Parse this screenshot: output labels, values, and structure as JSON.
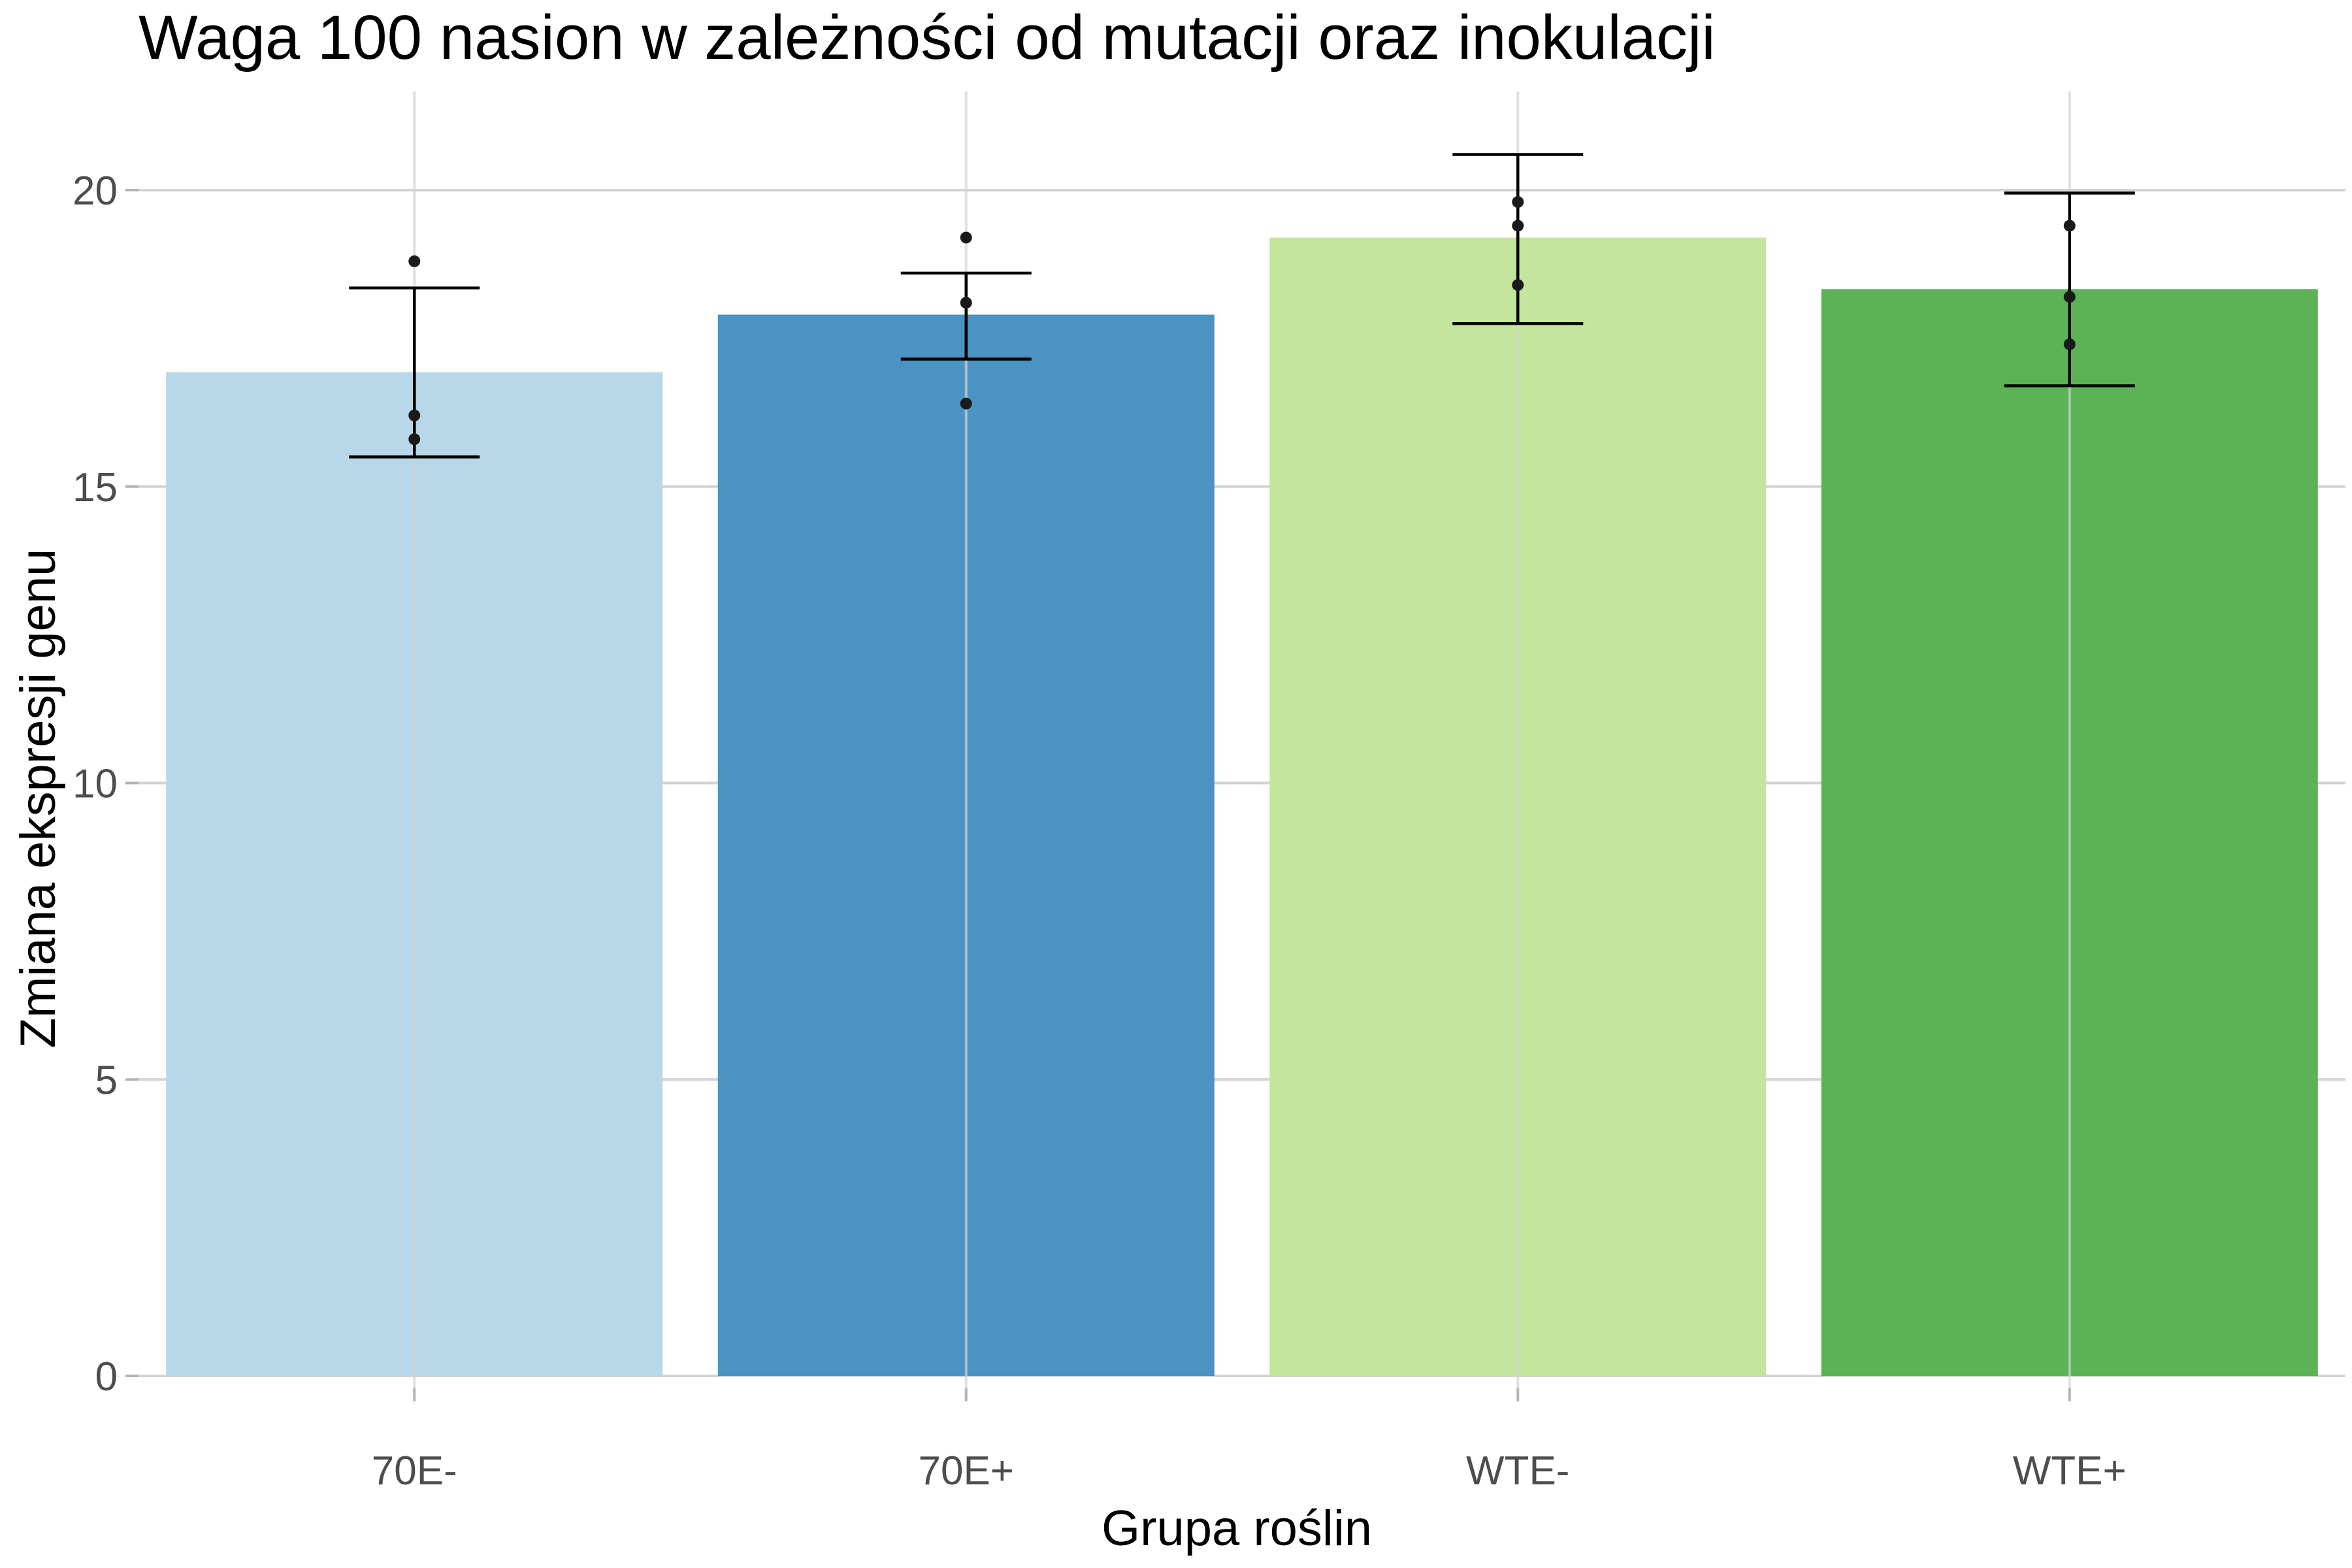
{
  "chart_data": {
    "type": "bar",
    "title": "Waga 100 nasion w zależności od mutacji oraz inokulacji",
    "xlabel": "Grupa roślin",
    "ylabel": "Zmiana ekspresji genu",
    "categories": [
      "70E-",
      "70E+",
      "WTE-",
      "WTE+"
    ],
    "values": [
      16.93,
      17.9,
      19.2,
      18.33
    ],
    "error_low": [
      15.5,
      17.15,
      17.75,
      16.7
    ],
    "error_high": [
      18.35,
      18.6,
      20.6,
      19.95
    ],
    "points": [
      [
        18.8,
        16.2,
        15.8
      ],
      [
        19.2,
        18.1,
        16.4
      ],
      [
        19.8,
        19.4,
        18.4
      ],
      [
        19.4,
        18.2,
        17.4
      ]
    ],
    "colors": [
      "#b8d7e8",
      "#4b93c3",
      "#c3e59d",
      "#5db157"
    ],
    "yticks": [
      0,
      5,
      10,
      15,
      20
    ],
    "ylim": [
      0,
      21.65
    ],
    "grid": true,
    "legend": "none"
  }
}
